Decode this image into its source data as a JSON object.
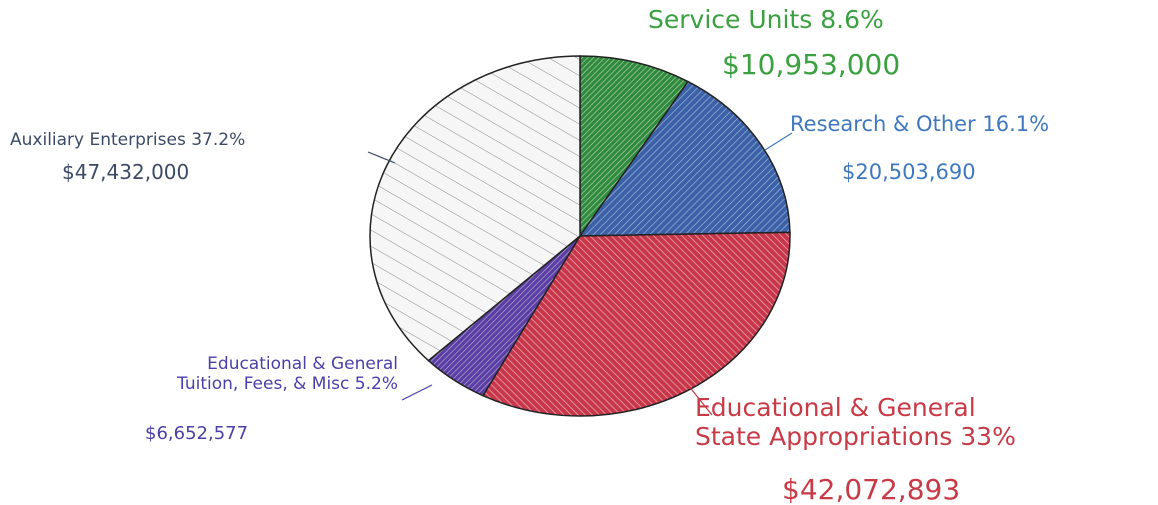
{
  "chart_data": {
    "type": "pie",
    "categories": [
      "Service Units",
      "Research & Other",
      "Educational & General\nState Appropriations",
      "Educational & General\nTuition, Fees, & Misc",
      "Auxiliary Enterprises"
    ],
    "values": [
      8.6,
      16.1,
      33,
      5.2,
      37.2
    ],
    "value_labels": [
      "8.6%",
      "16.1%",
      "33%",
      "5.2%",
      "37.2%"
    ],
    "amount_labels": [
      "$10,953,000",
      "$20,503,690",
      "$42,072,893",
      "$6,652,577",
      "$47,432,000"
    ],
    "colors": [
      "#2f8a3c",
      "#3b62a8",
      "#c8364a",
      "#5b3ea3",
      "#f6f6f6"
    ],
    "label_colors": [
      "#3aa040",
      "#3f78c0",
      "#c83a46",
      "#4a3fa8",
      "#3c4a66"
    ]
  }
}
